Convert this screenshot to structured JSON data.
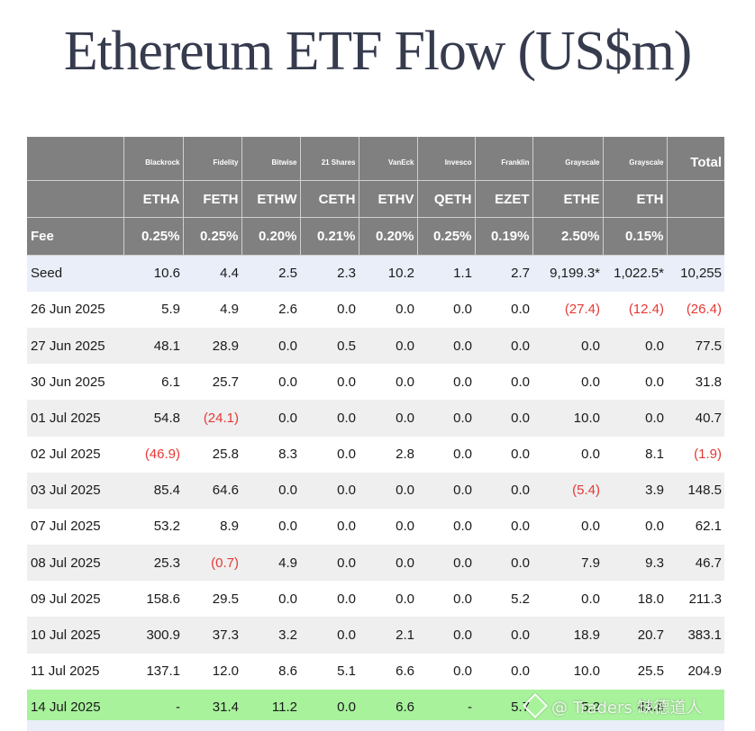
{
  "title": "Ethereum ETF Flow (US$m)",
  "header": {
    "issuers": [
      "",
      "Blackrock",
      "Fidelity",
      "Bitwise",
      "21 Shares",
      "VanEck",
      "Invesco",
      "Franklin",
      "Grayscale",
      "Grayscale"
    ],
    "total_label": "Total",
    "tickers": [
      "",
      "ETHA",
      "FETH",
      "ETHW",
      "CETH",
      "ETHV",
      "QETH",
      "EZET",
      "ETHE",
      "ETH",
      ""
    ],
    "fee_label": "Fee",
    "fees": [
      "0.25%",
      "0.25%",
      "0.20%",
      "0.21%",
      "0.20%",
      "0.25%",
      "0.19%",
      "2.50%",
      "0.15%",
      ""
    ]
  },
  "rows": [
    {
      "label": "Seed",
      "cells": [
        "10.6",
        "4.4",
        "2.5",
        "2.3",
        "10.2",
        "1.1",
        "2.7",
        "9,199.3*",
        "1,022.5*",
        "10,255"
      ]
    },
    {
      "label": "26 Jun 2025",
      "cells": [
        "5.9",
        "4.9",
        "2.6",
        "0.0",
        "0.0",
        "0.0",
        "0.0",
        "(27.4)",
        "(12.4)",
        "(26.4)"
      ]
    },
    {
      "label": "27 Jun 2025",
      "cells": [
        "48.1",
        "28.9",
        "0.0",
        "0.5",
        "0.0",
        "0.0",
        "0.0",
        "0.0",
        "0.0",
        "77.5"
      ]
    },
    {
      "label": "30 Jun 2025",
      "cells": [
        "6.1",
        "25.7",
        "0.0",
        "0.0",
        "0.0",
        "0.0",
        "0.0",
        "0.0",
        "0.0",
        "31.8"
      ]
    },
    {
      "label": "01 Jul 2025",
      "cells": [
        "54.8",
        "(24.1)",
        "0.0",
        "0.0",
        "0.0",
        "0.0",
        "0.0",
        "10.0",
        "0.0",
        "40.7"
      ]
    },
    {
      "label": "02 Jul 2025",
      "cells": [
        "(46.9)",
        "25.8",
        "8.3",
        "0.0",
        "2.8",
        "0.0",
        "0.0",
        "0.0",
        "8.1",
        "(1.9)"
      ]
    },
    {
      "label": "03 Jul 2025",
      "cells": [
        "85.4",
        "64.6",
        "0.0",
        "0.0",
        "0.0",
        "0.0",
        "0.0",
        "(5.4)",
        "3.9",
        "148.5"
      ]
    },
    {
      "label": "07 Jul 2025",
      "cells": [
        "53.2",
        "8.9",
        "0.0",
        "0.0",
        "0.0",
        "0.0",
        "0.0",
        "0.0",
        "0.0",
        "62.1"
      ]
    },
    {
      "label": "08 Jul 2025",
      "cells": [
        "25.3",
        "(0.7)",
        "4.9",
        "0.0",
        "0.0",
        "0.0",
        "0.0",
        "7.9",
        "9.3",
        "46.7"
      ]
    },
    {
      "label": "09 Jul 2025",
      "cells": [
        "158.6",
        "29.5",
        "0.0",
        "0.0",
        "0.0",
        "0.0",
        "5.2",
        "0.0",
        "18.0",
        "211.3"
      ]
    },
    {
      "label": "10 Jul 2025",
      "cells": [
        "300.9",
        "37.3",
        "3.2",
        "0.0",
        "2.1",
        "0.0",
        "0.0",
        "18.9",
        "20.7",
        "383.1"
      ]
    },
    {
      "label": "11 Jul 2025",
      "cells": [
        "137.1",
        "12.0",
        "8.6",
        "5.1",
        "6.6",
        "0.0",
        "0.0",
        "10.0",
        "25.5",
        "204.9"
      ]
    },
    {
      "label": "14 Jul 2025",
      "cells": [
        "-",
        "31.4",
        "11.2",
        "0.0",
        "6.6",
        "-",
        "5.7",
        "5.2",
        "43.8",
        ""
      ]
    }
  ],
  "watermark": "@ Traders 缺德道人",
  "colors": {
    "header_bg": "#808080",
    "negative": "#e53935",
    "seed_bg": "#e9eef8",
    "highlight_bg": "#a8f29c",
    "title": "#363b4e"
  }
}
